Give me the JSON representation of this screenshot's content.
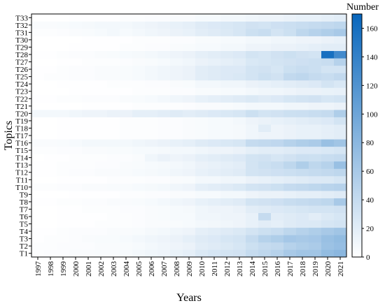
{
  "chart_data": {
    "type": "heatmap",
    "title": "",
    "xlabel": "Years",
    "ylabel": "Topics",
    "colorbar_label": "Number",
    "colorbar_ticks": [
      "0",
      "20",
      "40",
      "60",
      "80",
      "100",
      "120",
      "140",
      "160"
    ],
    "zlim": [
      0,
      170
    ],
    "colorscale": [
      "#ffffff",
      "#0866bc"
    ],
    "x": [
      "1997",
      "1998",
      "1999",
      "2000",
      "2001",
      "2002",
      "2003",
      "2004",
      "2005",
      "2006",
      "2007",
      "2008",
      "2009",
      "2010",
      "2011",
      "2012",
      "2013",
      "2014",
      "2015",
      "2016",
      "2017",
      "2018",
      "2019",
      "2020",
      "2021"
    ],
    "y": [
      "T1",
      "T2",
      "T3",
      "T4",
      "T5",
      "T6",
      "T7",
      "T8",
      "T9",
      "T10",
      "T11",
      "T12",
      "T13",
      "T14",
      "T15",
      "T16",
      "T17",
      "T18",
      "T19",
      "T20",
      "T21",
      "T22",
      "T23",
      "T24",
      "T25",
      "T26",
      "T27",
      "T28",
      "T29",
      "T30",
      "T31",
      "T32",
      "T33"
    ],
    "values": [
      [
        2,
        3,
        3,
        4,
        4,
        5,
        5,
        6,
        8,
        10,
        12,
        15,
        18,
        25,
        28,
        30,
        32,
        40,
        45,
        50,
        60,
        65,
        65,
        75,
        80
      ],
      [
        2,
        2,
        3,
        3,
        3,
        4,
        4,
        5,
        6,
        8,
        10,
        12,
        14,
        20,
        22,
        25,
        28,
        35,
        40,
        42,
        50,
        55,
        58,
        68,
        72
      ],
      [
        1,
        2,
        2,
        3,
        4,
        5,
        5,
        6,
        8,
        10,
        12,
        14,
        18,
        22,
        24,
        28,
        30,
        40,
        50,
        55,
        62,
        60,
        62,
        70,
        75
      ],
      [
        1,
        1,
        2,
        3,
        3,
        3,
        4,
        4,
        5,
        7,
        8,
        10,
        12,
        18,
        20,
        22,
        25,
        30,
        35,
        38,
        45,
        50,
        55,
        60,
        65
      ],
      [
        0,
        0,
        1,
        1,
        1,
        2,
        2,
        2,
        3,
        4,
        4,
        5,
        6,
        8,
        9,
        10,
        12,
        16,
        20,
        18,
        22,
        24,
        25,
        28,
        30
      ],
      [
        0,
        0,
        1,
        1,
        1,
        1,
        2,
        2,
        3,
        4,
        5,
        6,
        6,
        10,
        10,
        12,
        12,
        16,
        40,
        20,
        22,
        24,
        20,
        25,
        28
      ],
      [
        0,
        0,
        1,
        1,
        2,
        2,
        2,
        3,
        3,
        4,
        5,
        6,
        7,
        10,
        12,
        12,
        14,
        20,
        22,
        24,
        26,
        28,
        30,
        30,
        32
      ],
      [
        1,
        1,
        2,
        2,
        3,
        3,
        4,
        4,
        5,
        6,
        8,
        10,
        12,
        16,
        18,
        20,
        22,
        30,
        32,
        34,
        38,
        40,
        42,
        45,
        60
      ],
      [
        0,
        0,
        0,
        1,
        1,
        1,
        1,
        2,
        2,
        3,
        3,
        4,
        4,
        6,
        6,
        8,
        8,
        12,
        14,
        14,
        16,
        18,
        18,
        20,
        22
      ],
      [
        2,
        2,
        3,
        3,
        4,
        4,
        5,
        5,
        6,
        7,
        8,
        10,
        12,
        18,
        20,
        22,
        25,
        30,
        32,
        35,
        40,
        42,
        45,
        48,
        50
      ],
      [
        0,
        0,
        1,
        1,
        1,
        1,
        2,
        2,
        2,
        3,
        3,
        4,
        5,
        8,
        8,
        10,
        10,
        14,
        16,
        18,
        20,
        22,
        24,
        25,
        28
      ],
      [
        1,
        1,
        2,
        3,
        3,
        4,
        4,
        5,
        6,
        7,
        8,
        10,
        12,
        16,
        18,
        20,
        22,
        30,
        32,
        34,
        36,
        38,
        40,
        42,
        45
      ],
      [
        1,
        1,
        2,
        2,
        2,
        3,
        3,
        4,
        5,
        6,
        7,
        8,
        10,
        14,
        16,
        18,
        20,
        30,
        35,
        38,
        45,
        55,
        45,
        50,
        70
      ],
      [
        0,
        1,
        1,
        2,
        2,
        2,
        3,
        3,
        4,
        10,
        14,
        12,
        14,
        18,
        20,
        22,
        24,
        30,
        32,
        28,
        32,
        36,
        35,
        38,
        40
      ],
      [
        2,
        2,
        3,
        3,
        4,
        4,
        5,
        5,
        6,
        6,
        7,
        8,
        8,
        10,
        12,
        12,
        14,
        18,
        20,
        20,
        22,
        24,
        24,
        26,
        28
      ],
      [
        4,
        4,
        5,
        6,
        8,
        8,
        8,
        8,
        10,
        12,
        14,
        16,
        18,
        22,
        24,
        26,
        28,
        40,
        42,
        44,
        50,
        55,
        58,
        70,
        65
      ],
      [
        0,
        0,
        1,
        1,
        1,
        1,
        1,
        2,
        2,
        2,
        3,
        3,
        4,
        5,
        6,
        6,
        7,
        10,
        12,
        12,
        14,
        16,
        16,
        18,
        20
      ],
      [
        0,
        0,
        1,
        1,
        1,
        1,
        1,
        2,
        2,
        2,
        3,
        3,
        4,
        5,
        6,
        6,
        7,
        10,
        20,
        12,
        14,
        16,
        16,
        18,
        20
      ],
      [
        0,
        0,
        1,
        1,
        1,
        1,
        1,
        2,
        2,
        2,
        3,
        3,
        4,
        5,
        6,
        6,
        8,
        12,
        14,
        16,
        18,
        20,
        22,
        24,
        30
      ],
      [
        8,
        8,
        8,
        10,
        12,
        12,
        14,
        14,
        18,
        18,
        20,
        22,
        20,
        22,
        24,
        26,
        28,
        35,
        30,
        32,
        35,
        36,
        38,
        40,
        55
      ],
      [
        0,
        0,
        0,
        0,
        1,
        1,
        1,
        1,
        2,
        2,
        2,
        2,
        3,
        4,
        4,
        5,
        6,
        8,
        8,
        8,
        10,
        10,
        12,
        12,
        14
      ],
      [
        1,
        1,
        2,
        2,
        3,
        3,
        3,
        4,
        5,
        6,
        8,
        10,
        12,
        16,
        18,
        20,
        22,
        25,
        22,
        24,
        28,
        30,
        32,
        28,
        30
      ],
      [
        0,
        0,
        0,
        1,
        1,
        1,
        1,
        1,
        2,
        2,
        2,
        3,
        3,
        5,
        5,
        6,
        6,
        8,
        10,
        10,
        12,
        14,
        14,
        15,
        16
      ],
      [
        0,
        0,
        1,
        1,
        1,
        1,
        2,
        2,
        2,
        3,
        3,
        4,
        5,
        8,
        8,
        10,
        10,
        14,
        16,
        18,
        20,
        22,
        24,
        30,
        26
      ],
      [
        1,
        2,
        2,
        3,
        3,
        4,
        4,
        5,
        6,
        8,
        10,
        12,
        14,
        20,
        22,
        24,
        26,
        30,
        35,
        32,
        42,
        45,
        40,
        38,
        42
      ],
      [
        1,
        1,
        2,
        3,
        3,
        4,
        4,
        5,
        6,
        8,
        10,
        12,
        14,
        20,
        22,
        24,
        24,
        30,
        32,
        28,
        35,
        38,
        36,
        30,
        30
      ],
      [
        0,
        0,
        1,
        1,
        2,
        2,
        2,
        3,
        4,
        5,
        6,
        8,
        10,
        14,
        16,
        18,
        20,
        26,
        28,
        30,
        32,
        34,
        36,
        38,
        50
      ],
      [
        1,
        1,
        2,
        3,
        3,
        4,
        5,
        6,
        7,
        8,
        10,
        12,
        14,
        18,
        20,
        22,
        24,
        30,
        28,
        32,
        35,
        32,
        30,
        160,
        130
      ],
      [
        0,
        0,
        0,
        1,
        1,
        1,
        1,
        2,
        2,
        3,
        3,
        4,
        5,
        6,
        6,
        8,
        8,
        12,
        12,
        14,
        14,
        16,
        18,
        20,
        20
      ],
      [
        0,
        0,
        0,
        0,
        1,
        1,
        1,
        1,
        2,
        2,
        2,
        3,
        3,
        5,
        5,
        6,
        6,
        8,
        8,
        10,
        10,
        12,
        12,
        14,
        16
      ],
      [
        2,
        2,
        3,
        4,
        5,
        6,
        8,
        6,
        8,
        10,
        12,
        14,
        16,
        20,
        22,
        25,
        28,
        35,
        38,
        30,
        35,
        45,
        50,
        55,
        60
      ],
      [
        4,
        4,
        5,
        6,
        7,
        8,
        8,
        8,
        10,
        12,
        14,
        16,
        18,
        22,
        24,
        26,
        28,
        32,
        30,
        34,
        36,
        38,
        40,
        42,
        45
      ],
      [
        0,
        0,
        0,
        1,
        1,
        1,
        1,
        2,
        2,
        3,
        3,
        4,
        4,
        6,
        6,
        8,
        8,
        10,
        12,
        12,
        14,
        16,
        16,
        18,
        20
      ]
    ]
  }
}
